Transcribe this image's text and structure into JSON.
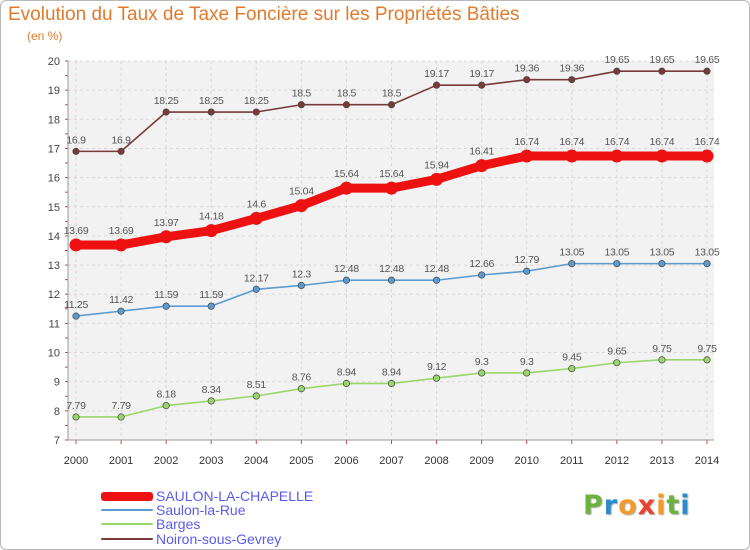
{
  "title": "Evolution du Taux de Taxe Foncière sur les Propriétés Bâties",
  "subtitle": "(en %)",
  "logo": {
    "letters": [
      "P",
      "r",
      "o",
      "x",
      "i",
      "t",
      "i"
    ],
    "colors": [
      "#6cb33e",
      "#2e8bc9",
      "#f29a2e",
      "#e9432c",
      "#f29a2e",
      "#6cb33e",
      "#2e8bc9"
    ]
  },
  "chart_data": {
    "type": "line",
    "x": [
      2000,
      2001,
      2002,
      2003,
      2004,
      2005,
      2006,
      2007,
      2008,
      2009,
      2010,
      2011,
      2012,
      2013,
      2014
    ],
    "ylim": [
      7,
      20
    ],
    "yticks": [
      7,
      8,
      9,
      10,
      11,
      12,
      13,
      14,
      15,
      16,
      17,
      18,
      19,
      20
    ],
    "grid": true,
    "legend_position": "bottom-left",
    "series": [
      {
        "name": "SAULON-LA-CHAPELLE",
        "color": "#ee1111",
        "labelColor": "#5b5bf0",
        "thick": true,
        "labels": [
          "13.69",
          "13.69",
          "13.97",
          "14.18",
          "14.6",
          "15.04",
          "15.64",
          "15.64",
          "15.94",
          "16.41",
          "16.74",
          "16.74",
          "16.74",
          "16.74",
          "16.74"
        ],
        "values": [
          13.69,
          13.69,
          13.97,
          14.18,
          14.6,
          15.04,
          15.64,
          15.64,
          15.94,
          16.41,
          16.74,
          16.74,
          16.74,
          16.74,
          16.74
        ]
      },
      {
        "name": "Saulon-la-Rue",
        "color": "#5b9bd0",
        "labelColor": "#5b5bf0",
        "thick": false,
        "labels": [
          "11.25",
          "11.42",
          "11.59",
          "11.59",
          "12.17",
          "12.3",
          "12.48",
          "12.48",
          "12.48",
          "12.66",
          "12.79",
          "13.05",
          "13.05",
          "13.05",
          "13.05"
        ],
        "values": [
          11.25,
          11.42,
          11.59,
          11.59,
          12.17,
          12.3,
          12.48,
          12.48,
          12.48,
          12.66,
          12.79,
          13.05,
          13.05,
          13.05,
          13.05
        ]
      },
      {
        "name": "Barges",
        "color": "#99d66a",
        "labelColor": "#5b5bf0",
        "thick": false,
        "labels": [
          "7.79",
          "7.79",
          "8.18",
          "8.34",
          "8.51",
          "8.76",
          "8.94",
          "8.94",
          "9.12",
          "9.3",
          "9.3",
          "9.45",
          "9.65",
          "9.75",
          "9.75"
        ],
        "values": [
          7.79,
          7.79,
          8.18,
          8.34,
          8.51,
          8.76,
          8.94,
          8.94,
          9.12,
          9.3,
          9.3,
          9.45,
          9.65,
          9.75,
          9.75
        ]
      },
      {
        "name": "Noiron-sous-Gevrey",
        "color": "#7a3a3a",
        "labelColor": "#5b5bf0",
        "thick": false,
        "labels": [
          "16.9",
          "16.9",
          "18.25",
          "18.25",
          "18.25",
          "18.5",
          "18.5",
          "18.5",
          "19.17",
          "19.17",
          "19.36",
          "19.36",
          "19.65",
          "19.65",
          "19.65"
        ],
        "values": [
          16.9,
          16.9,
          18.25,
          18.25,
          18.25,
          18.5,
          18.5,
          18.5,
          19.17,
          19.17,
          19.36,
          19.36,
          19.65,
          19.65,
          19.65
        ]
      }
    ]
  }
}
